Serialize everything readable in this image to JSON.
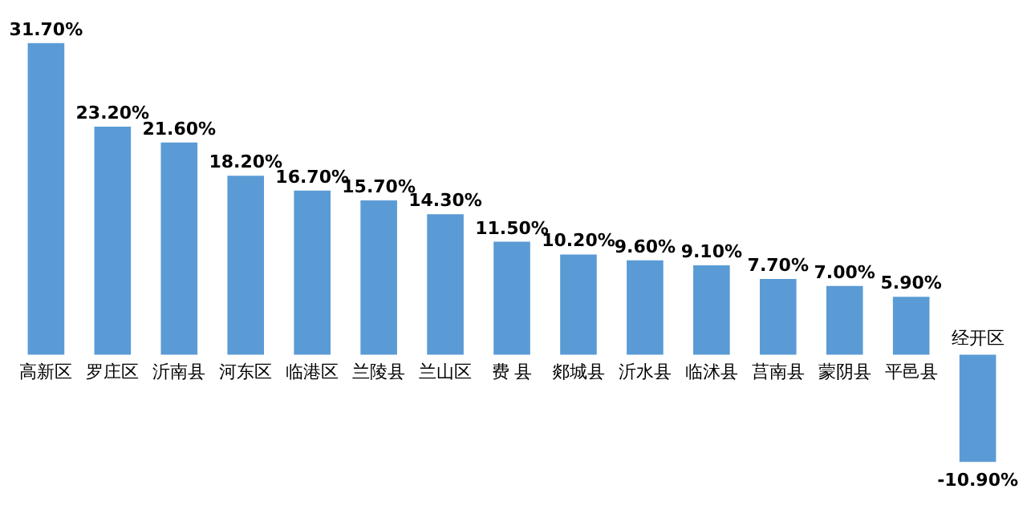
{
  "chart_data": {
    "type": "bar",
    "categories": [
      "高新区",
      "罗庄区",
      "沂南县",
      "河东区",
      "临港区",
      "兰陵县",
      "兰山区",
      "费 县",
      "郯城县",
      "沂水县",
      "临沭县",
      "莒南县",
      "蒙阴县",
      "平邑县",
      "经开区"
    ],
    "values": [
      31.7,
      23.2,
      21.6,
      18.2,
      16.7,
      15.7,
      14.3,
      11.5,
      10.2,
      9.6,
      9.1,
      7.7,
      7.0,
      5.9,
      -10.9
    ],
    "color": "#5b9bd5",
    "value_labels": [
      "31.70%",
      "23.20%",
      "21.60%",
      "18.20%",
      "16.70%",
      "15.70%",
      "14.30%",
      "11.50%",
      "10.20%",
      "9.60%",
      "9.10%",
      "7.70%",
      "7.00%",
      "5.90%",
      "-10.90%"
    ]
  }
}
